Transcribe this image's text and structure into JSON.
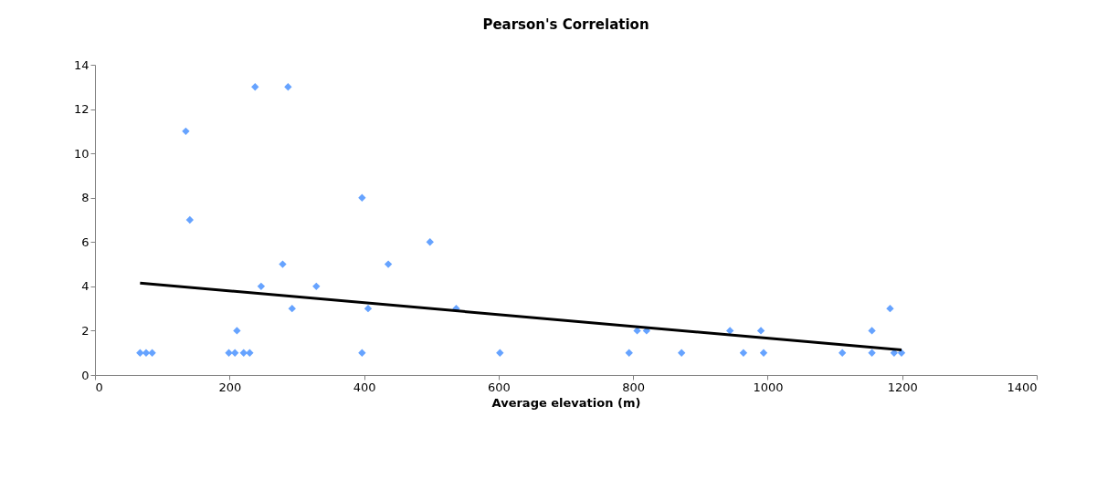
{
  "chart_data": {
    "type": "scatter",
    "title": "Pearson's Correlation",
    "xlabel": "Average elevation (m)",
    "xlim": [
      0,
      1400
    ],
    "xticks": [
      0,
      200,
      400,
      600,
      800,
      1000,
      1200,
      1400
    ],
    "ylim": [
      0,
      14
    ],
    "yticks": [
      0,
      2,
      4,
      6,
      8,
      10,
      12,
      14
    ],
    "grid": false,
    "marker": "diamond",
    "series": [
      {
        "color": "#66a3ff",
        "x": [
          67,
          76,
          85,
          199,
          208,
          221,
          230,
          211,
          135,
          141,
          238,
          287,
          279,
          247,
          293,
          329,
          397,
          397,
          406,
          436,
          498,
          537,
          602,
          794,
          806,
          820,
          872,
          944,
          964,
          990,
          994,
          1111,
          1155,
          1155,
          1182,
          1188,
          1199
        ],
        "values": [
          1,
          1,
          1,
          1,
          1,
          1,
          1,
          2,
          11,
          7,
          13,
          13,
          5,
          4,
          3,
          4,
          8,
          1,
          3,
          5,
          6,
          3,
          1,
          1,
          2,
          2,
          1,
          2,
          1,
          2,
          1,
          1,
          2,
          1,
          3,
          1,
          1
        ]
      },
      {
        "type": "line",
        "color": "#000000",
        "x": [
          67,
          1199
        ],
        "values": [
          4.15,
          1.13
        ],
        "line_style": "solid",
        "marker": "none"
      }
    ]
  }
}
